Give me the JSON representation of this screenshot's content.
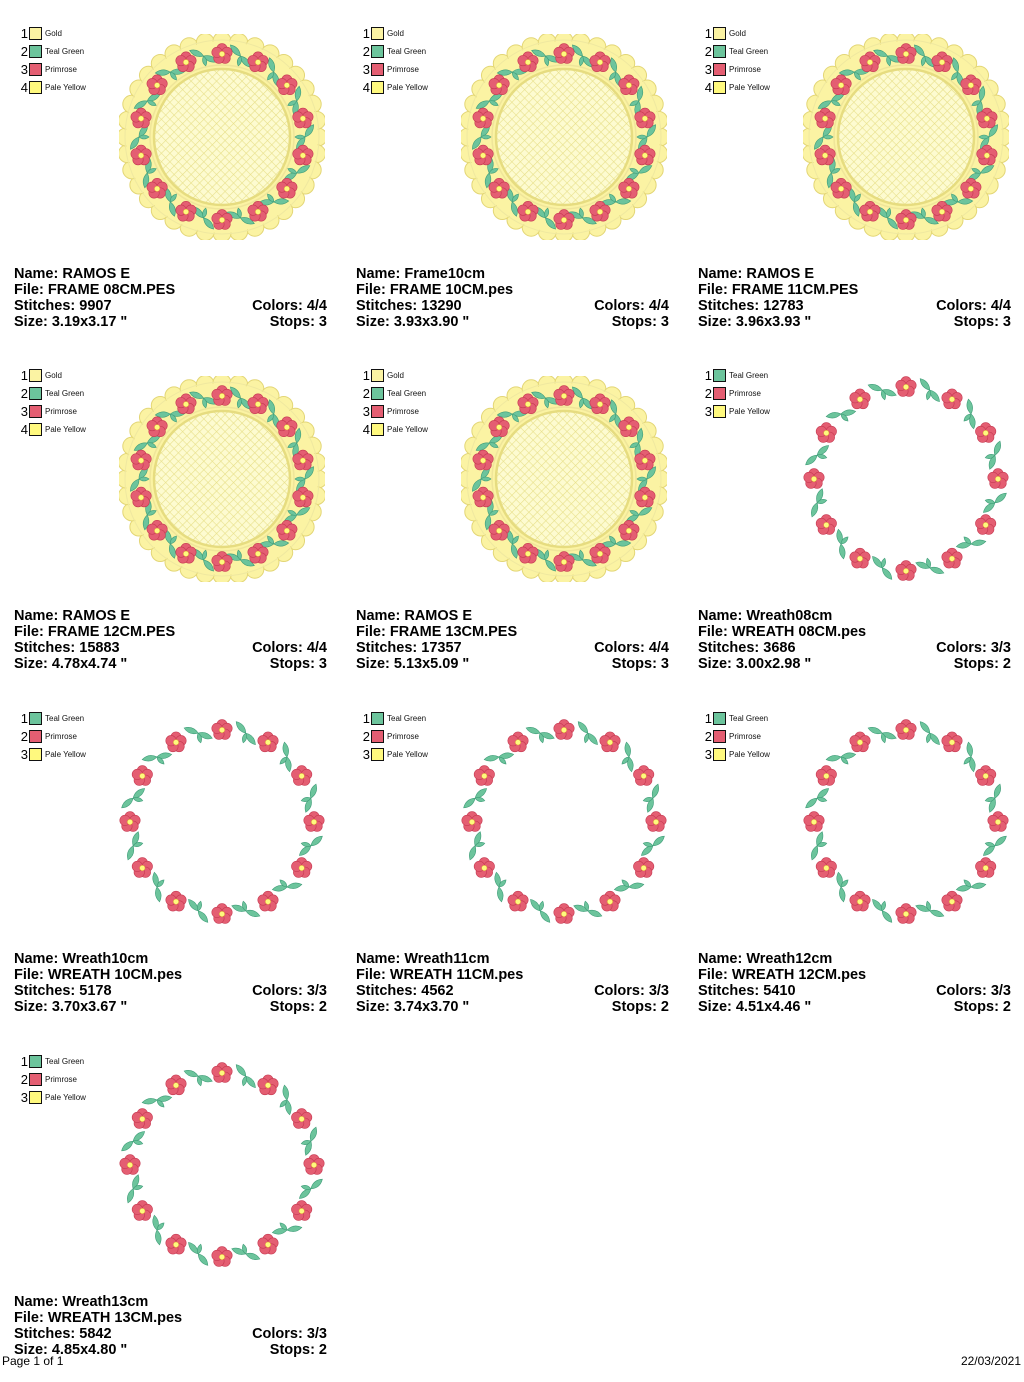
{
  "colors": {
    "Gold": "#fbf3a3",
    "Teal Green": "#6cc49c",
    "Primrose": "#e45e72",
    "Pale Yellow": "#fff97e"
  },
  "labels": {
    "name": "Name:",
    "file": "File:",
    "stitches": "Stitches:",
    "size": "Size:",
    "colors": "Colors:",
    "stops": "Stops:"
  },
  "designs": [
    {
      "type": "frame",
      "legend": [
        {
          "num": "1",
          "name": "Gold"
        },
        {
          "num": "2",
          "name": "Teal Green"
        },
        {
          "num": "3",
          "name": "Primrose"
        },
        {
          "num": "4",
          "name": "Pale Yellow"
        }
      ],
      "name": "Name: RAMOS E",
      "file": "File: FRAME 08CM.PES",
      "stitches": "Stitches: 9907",
      "size": "Size: 3.19x3.17 \"",
      "colors": "Colors: 4/4",
      "stops": "Stops: 3"
    },
    {
      "type": "frame",
      "legend": [
        {
          "num": "1",
          "name": "Gold"
        },
        {
          "num": "2",
          "name": "Teal Green"
        },
        {
          "num": "3",
          "name": "Primrose"
        },
        {
          "num": "4",
          "name": "Pale Yellow"
        }
      ],
      "name": "Name: Frame10cm",
      "file": "File: FRAME 10CM.pes",
      "stitches": "Stitches: 13290",
      "size": "Size: 3.93x3.90 \"",
      "colors": "Colors: 4/4",
      "stops": "Stops: 3"
    },
    {
      "type": "frame",
      "legend": [
        {
          "num": "1",
          "name": "Gold"
        },
        {
          "num": "2",
          "name": "Teal Green"
        },
        {
          "num": "3",
          "name": "Primrose"
        },
        {
          "num": "4",
          "name": "Pale Yellow"
        }
      ],
      "name": "Name: RAMOS E",
      "file": "File: FRAME 11CM.PES",
      "stitches": "Stitches: 12783",
      "size": "Size: 3.96x3.93 \"",
      "colors": "Colors: 4/4",
      "stops": "Stops: 3"
    },
    {
      "type": "frame",
      "legend": [
        {
          "num": "1",
          "name": "Gold"
        },
        {
          "num": "2",
          "name": "Teal Green"
        },
        {
          "num": "3",
          "name": "Primrose"
        },
        {
          "num": "4",
          "name": "Pale Yellow"
        }
      ],
      "name": "Name: RAMOS E",
      "file": "File: FRAME 12CM.PES",
      "stitches": "Stitches: 15883",
      "size": "Size: 4.78x4.74 \"",
      "colors": "Colors: 4/4",
      "stops": "Stops: 3"
    },
    {
      "type": "frame",
      "legend": [
        {
          "num": "1",
          "name": "Gold"
        },
        {
          "num": "2",
          "name": "Teal Green"
        },
        {
          "num": "3",
          "name": "Primrose"
        },
        {
          "num": "4",
          "name": "Pale Yellow"
        }
      ],
      "name": "Name: RAMOS E",
      "file": "File: FRAME 13CM.PES",
      "stitches": "Stitches: 17357",
      "size": "Size: 5.13x5.09 \"",
      "colors": "Colors: 4/4",
      "stops": "Stops: 3"
    },
    {
      "type": "wreath",
      "legend": [
        {
          "num": "1",
          "name": "Teal Green"
        },
        {
          "num": "2",
          "name": "Primrose"
        },
        {
          "num": "3",
          "name": "Pale Yellow"
        }
      ],
      "name": "Name: Wreath08cm",
      "file": "File: WREATH 08CM.pes",
      "stitches": "Stitches: 3686",
      "size": "Size: 3.00x2.98 \"",
      "colors": "Colors: 3/3",
      "stops": "Stops: 2"
    },
    {
      "type": "wreath",
      "legend": [
        {
          "num": "1",
          "name": "Teal Green"
        },
        {
          "num": "2",
          "name": "Primrose"
        },
        {
          "num": "3",
          "name": "Pale Yellow"
        }
      ],
      "name": "Name: Wreath10cm",
      "file": "File: WREATH 10CM.pes",
      "stitches": "Stitches: 5178",
      "size": "Size: 3.70x3.67 \"",
      "colors": "Colors: 3/3",
      "stops": "Stops: 2"
    },
    {
      "type": "wreath",
      "legend": [
        {
          "num": "1",
          "name": "Teal Green"
        },
        {
          "num": "2",
          "name": "Primrose"
        },
        {
          "num": "3",
          "name": "Pale Yellow"
        }
      ],
      "name": "Name: Wreath11cm",
      "file": "File: WREATH 11CM.pes",
      "stitches": "Stitches: 4562",
      "size": "Size: 3.74x3.70 \"",
      "colors": "Colors: 3/3",
      "stops": "Stops: 2"
    },
    {
      "type": "wreath",
      "legend": [
        {
          "num": "1",
          "name": "Teal Green"
        },
        {
          "num": "2",
          "name": "Primrose"
        },
        {
          "num": "3",
          "name": "Pale Yellow"
        }
      ],
      "name": "Name: Wreath12cm",
      "file": "File: WREATH 12CM.pes",
      "stitches": "Stitches: 5410",
      "size": "Size: 4.51x4.46 \"",
      "colors": "Colors: 3/3",
      "stops": "Stops: 2"
    },
    {
      "type": "wreath",
      "legend": [
        {
          "num": "1",
          "name": "Teal Green"
        },
        {
          "num": "2",
          "name": "Primrose"
        },
        {
          "num": "3",
          "name": "Pale Yellow"
        }
      ],
      "name": "Name: Wreath13cm",
      "file": "File: WREATH 13CM.pes",
      "stitches": "Stitches: 5842",
      "size": "Size: 4.85x4.80 \"",
      "colors": "Colors: 3/3",
      "stops": "Stops: 2"
    }
  ],
  "footer": {
    "page": "Page 1 of 1",
    "date": "22/03/2021"
  }
}
